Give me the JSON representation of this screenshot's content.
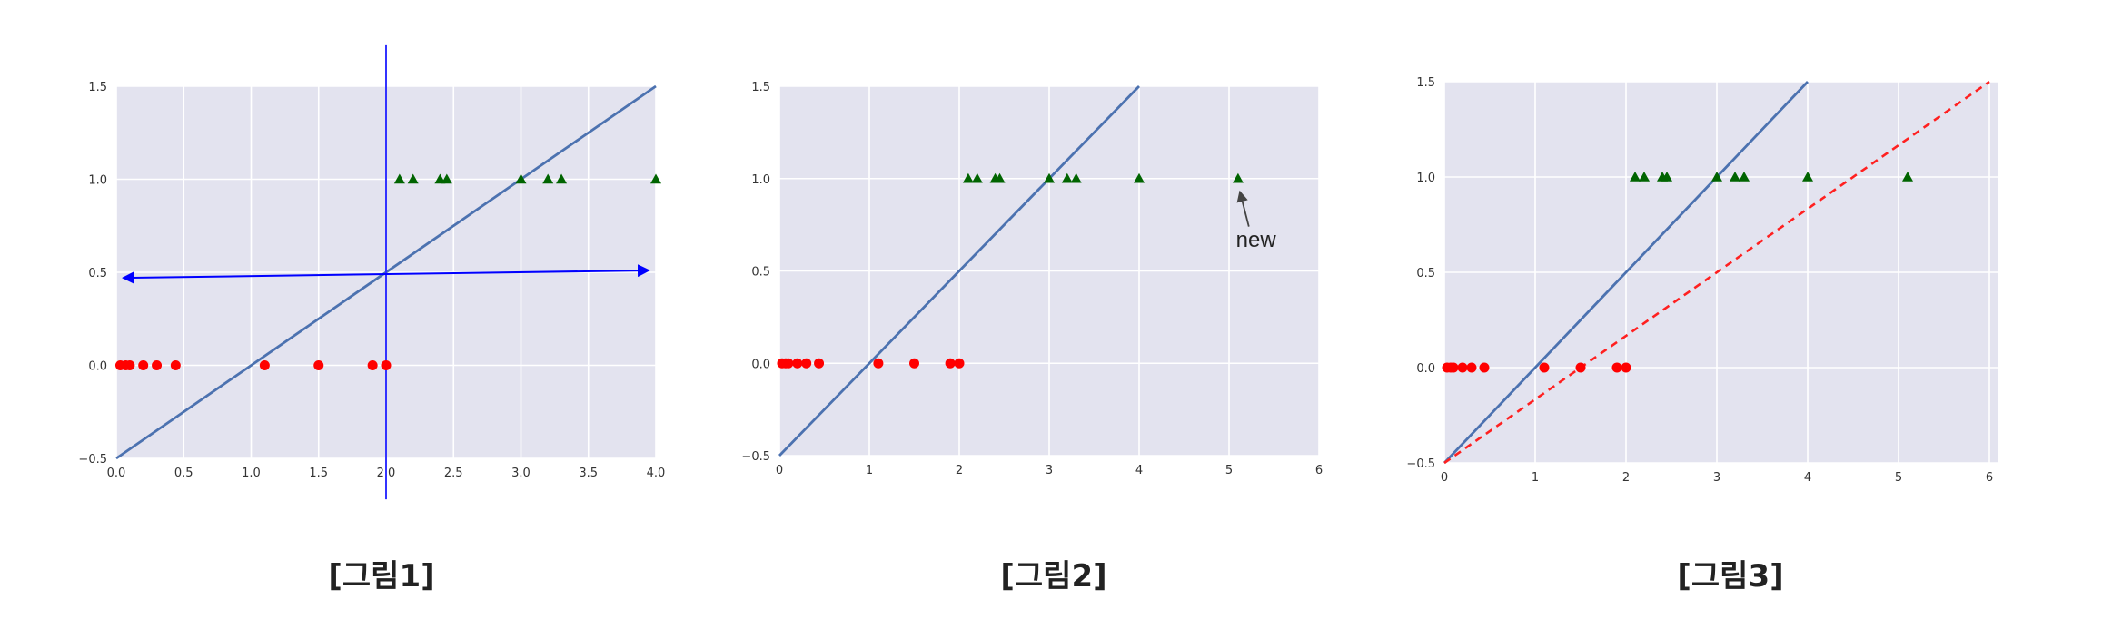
{
  "chart_data": [
    {
      "type": "scatter",
      "caption": "[그림1]",
      "xlim": [
        0,
        4.0
      ],
      "ylim": [
        -0.5,
        1.5
      ],
      "xticks": [
        "0.0",
        "0.5",
        "1.0",
        "1.5",
        "2.0",
        "2.5",
        "3.0",
        "3.5",
        "4.0"
      ],
      "xtick_values": [
        0,
        0.5,
        1.0,
        1.5,
        2.0,
        2.5,
        3.0,
        3.5,
        4.0
      ],
      "yticks": [
        "1.5",
        "1.0",
        "0.5",
        "0.0",
        "−0.5"
      ],
      "ytick_values": [
        1.5,
        1.0,
        0.5,
        0.0,
        -0.5
      ],
      "grid": true,
      "background": "#e3e3ef",
      "series": [
        {
          "marker": "circle",
          "color": "#ff0000",
          "points": [
            [
              0.03,
              0
            ],
            [
              0.07,
              0
            ],
            [
              0.1,
              0
            ],
            [
              0.2,
              0
            ],
            [
              0.3,
              0
            ],
            [
              0.44,
              0
            ],
            [
              1.1,
              0
            ],
            [
              1.5,
              0
            ],
            [
              1.9,
              0
            ],
            [
              2.0,
              0
            ]
          ]
        },
        {
          "marker": "triangle",
          "color": "#006400",
          "points": [
            [
              2.1,
              1
            ],
            [
              2.2,
              1
            ],
            [
              2.4,
              1
            ],
            [
              2.45,
              1
            ],
            [
              3.0,
              1
            ],
            [
              3.2,
              1
            ],
            [
              3.3,
              1
            ],
            [
              4.0,
              1
            ]
          ]
        }
      ],
      "lines": [
        {
          "x": [
            0,
            4.0
          ],
          "y": [
            -0.5,
            1.5
          ],
          "color": "#4c72b0",
          "style": "solid"
        }
      ],
      "extras": [
        {
          "kind": "vline",
          "x": 2.0,
          "y_from": -0.72,
          "y_to": 1.72,
          "color": "#3333ff"
        },
        {
          "kind": "double-arrow",
          "x_from": 0.05,
          "y_from": 0.47,
          "x_to": 3.95,
          "y_to": 0.51,
          "color": "#0000ff"
        }
      ]
    },
    {
      "type": "scatter",
      "caption": "[그림2]",
      "xlim": [
        0,
        6
      ],
      "ylim": [
        -0.5,
        1.5
      ],
      "xticks": [
        "0",
        "1",
        "2",
        "3",
        "4",
        "5",
        "6"
      ],
      "xtick_values": [
        0,
        1,
        2,
        3,
        4,
        5,
        6
      ],
      "yticks": [
        "1.5",
        "1.0",
        "0.5",
        "0.0",
        "−0.5"
      ],
      "ytick_values": [
        1.5,
        1.0,
        0.5,
        0.0,
        -0.5
      ],
      "grid": true,
      "background": "#e3e3ef",
      "series": [
        {
          "marker": "circle",
          "color": "#ff0000",
          "points": [
            [
              0.03,
              0
            ],
            [
              0.07,
              0
            ],
            [
              0.1,
              0
            ],
            [
              0.2,
              0
            ],
            [
              0.3,
              0
            ],
            [
              0.44,
              0
            ],
            [
              1.1,
              0
            ],
            [
              1.5,
              0
            ],
            [
              1.9,
              0
            ],
            [
              2.0,
              0
            ]
          ]
        },
        {
          "marker": "triangle",
          "color": "#006400",
          "points": [
            [
              2.1,
              1
            ],
            [
              2.2,
              1
            ],
            [
              2.4,
              1
            ],
            [
              2.45,
              1
            ],
            [
              3.0,
              1
            ],
            [
              3.2,
              1
            ],
            [
              3.3,
              1
            ],
            [
              4.0,
              1
            ],
            [
              5.1,
              1
            ]
          ]
        }
      ],
      "lines": [
        {
          "x": [
            0,
            4.0
          ],
          "y": [
            -0.5,
            1.5
          ],
          "color": "#4c72b0",
          "style": "solid"
        }
      ],
      "annotations": [
        {
          "text": "new",
          "x": 5.3,
          "y": 0.63,
          "arrow_to": [
            5.12,
            0.93
          ],
          "arrow_from": [
            5.22,
            0.74
          ]
        }
      ]
    },
    {
      "type": "scatter",
      "caption": "[그림3]",
      "xlim": [
        0,
        6.1
      ],
      "ylim": [
        -0.5,
        1.5
      ],
      "xticks": [
        "0",
        "1",
        "2",
        "3",
        "4",
        "5",
        "6"
      ],
      "xtick_values": [
        0,
        1,
        2,
        3,
        4,
        5,
        6
      ],
      "yticks": [
        "1.5",
        "1.0",
        "0.5",
        "0.0",
        "−0.5"
      ],
      "ytick_values": [
        1.5,
        1.0,
        0.5,
        0.0,
        -0.5
      ],
      "grid": true,
      "background": "#e3e3ef",
      "series": [
        {
          "marker": "circle",
          "color": "#ff0000",
          "points": [
            [
              0.03,
              0
            ],
            [
              0.07,
              0
            ],
            [
              0.1,
              0
            ],
            [
              0.2,
              0
            ],
            [
              0.3,
              0
            ],
            [
              0.44,
              0
            ],
            [
              1.1,
              0
            ],
            [
              1.5,
              0
            ],
            [
              1.9,
              0
            ],
            [
              2.0,
              0
            ]
          ]
        },
        {
          "marker": "triangle",
          "color": "#006400",
          "points": [
            [
              2.1,
              1
            ],
            [
              2.2,
              1
            ],
            [
              2.4,
              1
            ],
            [
              2.45,
              1
            ],
            [
              3.0,
              1
            ],
            [
              3.2,
              1
            ],
            [
              3.3,
              1
            ],
            [
              4.0,
              1
            ],
            [
              5.1,
              1
            ]
          ]
        }
      ],
      "lines": [
        {
          "x": [
            0,
            4.0
          ],
          "y": [
            -0.5,
            1.5
          ],
          "color": "#4c72b0",
          "style": "solid"
        },
        {
          "x": [
            0,
            6.0
          ],
          "y": [
            -0.5,
            1.5
          ],
          "color": "#ff2020",
          "style": "dashed"
        }
      ]
    }
  ]
}
